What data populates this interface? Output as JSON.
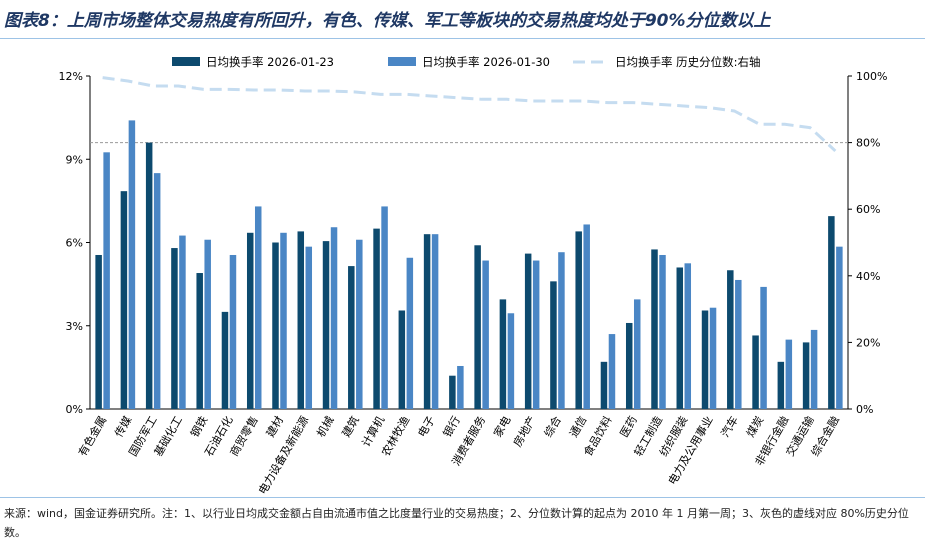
{
  "title": "图表8：上周市场整体交易热度有所回升，有色、传媒、军工等板块的交易热度均处于90%分位数以上",
  "footnote": "来源：wind，国金证券研究所。注：1、以行业日均成交金额占自由流通市值之比度量行业的交易热度；2、分位数计算的起点为 2010 年 1 月第一周；3、灰色的虚线对应 80%历史分位数。",
  "chart_data": {
    "type": "bar",
    "categories": [
      "有色金属",
      "传媒",
      "国防军工",
      "基础化工",
      "钢铁",
      "石油石化",
      "商贸零售",
      "建材",
      "电力设备及新能源",
      "机械",
      "建筑",
      "计算机",
      "农林牧渔",
      "电子",
      "银行",
      "消费者服务",
      "家电",
      "房地产",
      "综合",
      "通信",
      "食品饮料",
      "医药",
      "轻工制造",
      "纺织服装",
      "电力及公用事业",
      "汽车",
      "煤炭",
      "非银行金融",
      "交通运输",
      "综合金融"
    ],
    "series": [
      {
        "name": "日均换手率 2026-01-23",
        "type": "bar",
        "color": "#0d4a6e",
        "values": [
          5.55,
          7.85,
          9.6,
          5.8,
          4.9,
          3.5,
          6.35,
          6.0,
          6.4,
          6.05,
          5.15,
          6.5,
          3.55,
          6.3,
          1.2,
          5.9,
          3.95,
          5.6,
          4.6,
          6.4,
          1.7,
          3.1,
          5.75,
          5.1,
          3.55,
          5.0,
          2.65,
          1.7,
          2.4,
          6.95
        ]
      },
      {
        "name": "日均换手率 2026-01-30",
        "type": "bar",
        "color": "#4a86c5",
        "values": [
          9.25,
          10.4,
          8.5,
          6.25,
          6.1,
          5.55,
          7.3,
          6.35,
          5.85,
          6.55,
          6.1,
          7.3,
          5.45,
          6.3,
          1.55,
          5.35,
          3.45,
          5.35,
          5.65,
          6.65,
          2.7,
          3.95,
          5.55,
          5.25,
          3.65,
          4.65,
          4.4,
          2.5,
          2.85,
          5.85
        ]
      },
      {
        "name": "日均换手率 历史分位数:右轴",
        "type": "line",
        "axis": "right",
        "color": "#c5dcf0",
        "values": [
          99.5,
          98.5,
          97,
          97,
          96,
          96,
          95.8,
          95.8,
          95.5,
          95.5,
          95.2,
          94.5,
          94.5,
          94,
          93.5,
          93,
          93,
          92.5,
          92.5,
          92.5,
          92,
          92,
          91.5,
          91,
          90.5,
          89.5,
          85.5,
          85.5,
          84.5,
          77.5
        ]
      }
    ],
    "y_left": {
      "min": 0,
      "max": 12,
      "ticks": [
        "0%",
        "3%",
        "6%",
        "9%",
        "12%"
      ],
      "tick_values": [
        0,
        3,
        6,
        9,
        12
      ]
    },
    "y_right": {
      "min": 0,
      "max": 100,
      "ticks": [
        "0%",
        "20%",
        "40%",
        "60%",
        "80%",
        "100%"
      ],
      "tick_values": [
        0,
        20,
        40,
        60,
        80,
        100
      ]
    },
    "reference_line": {
      "axis": "right",
      "value": 80,
      "color": "#999999"
    },
    "legend_position": "top"
  }
}
